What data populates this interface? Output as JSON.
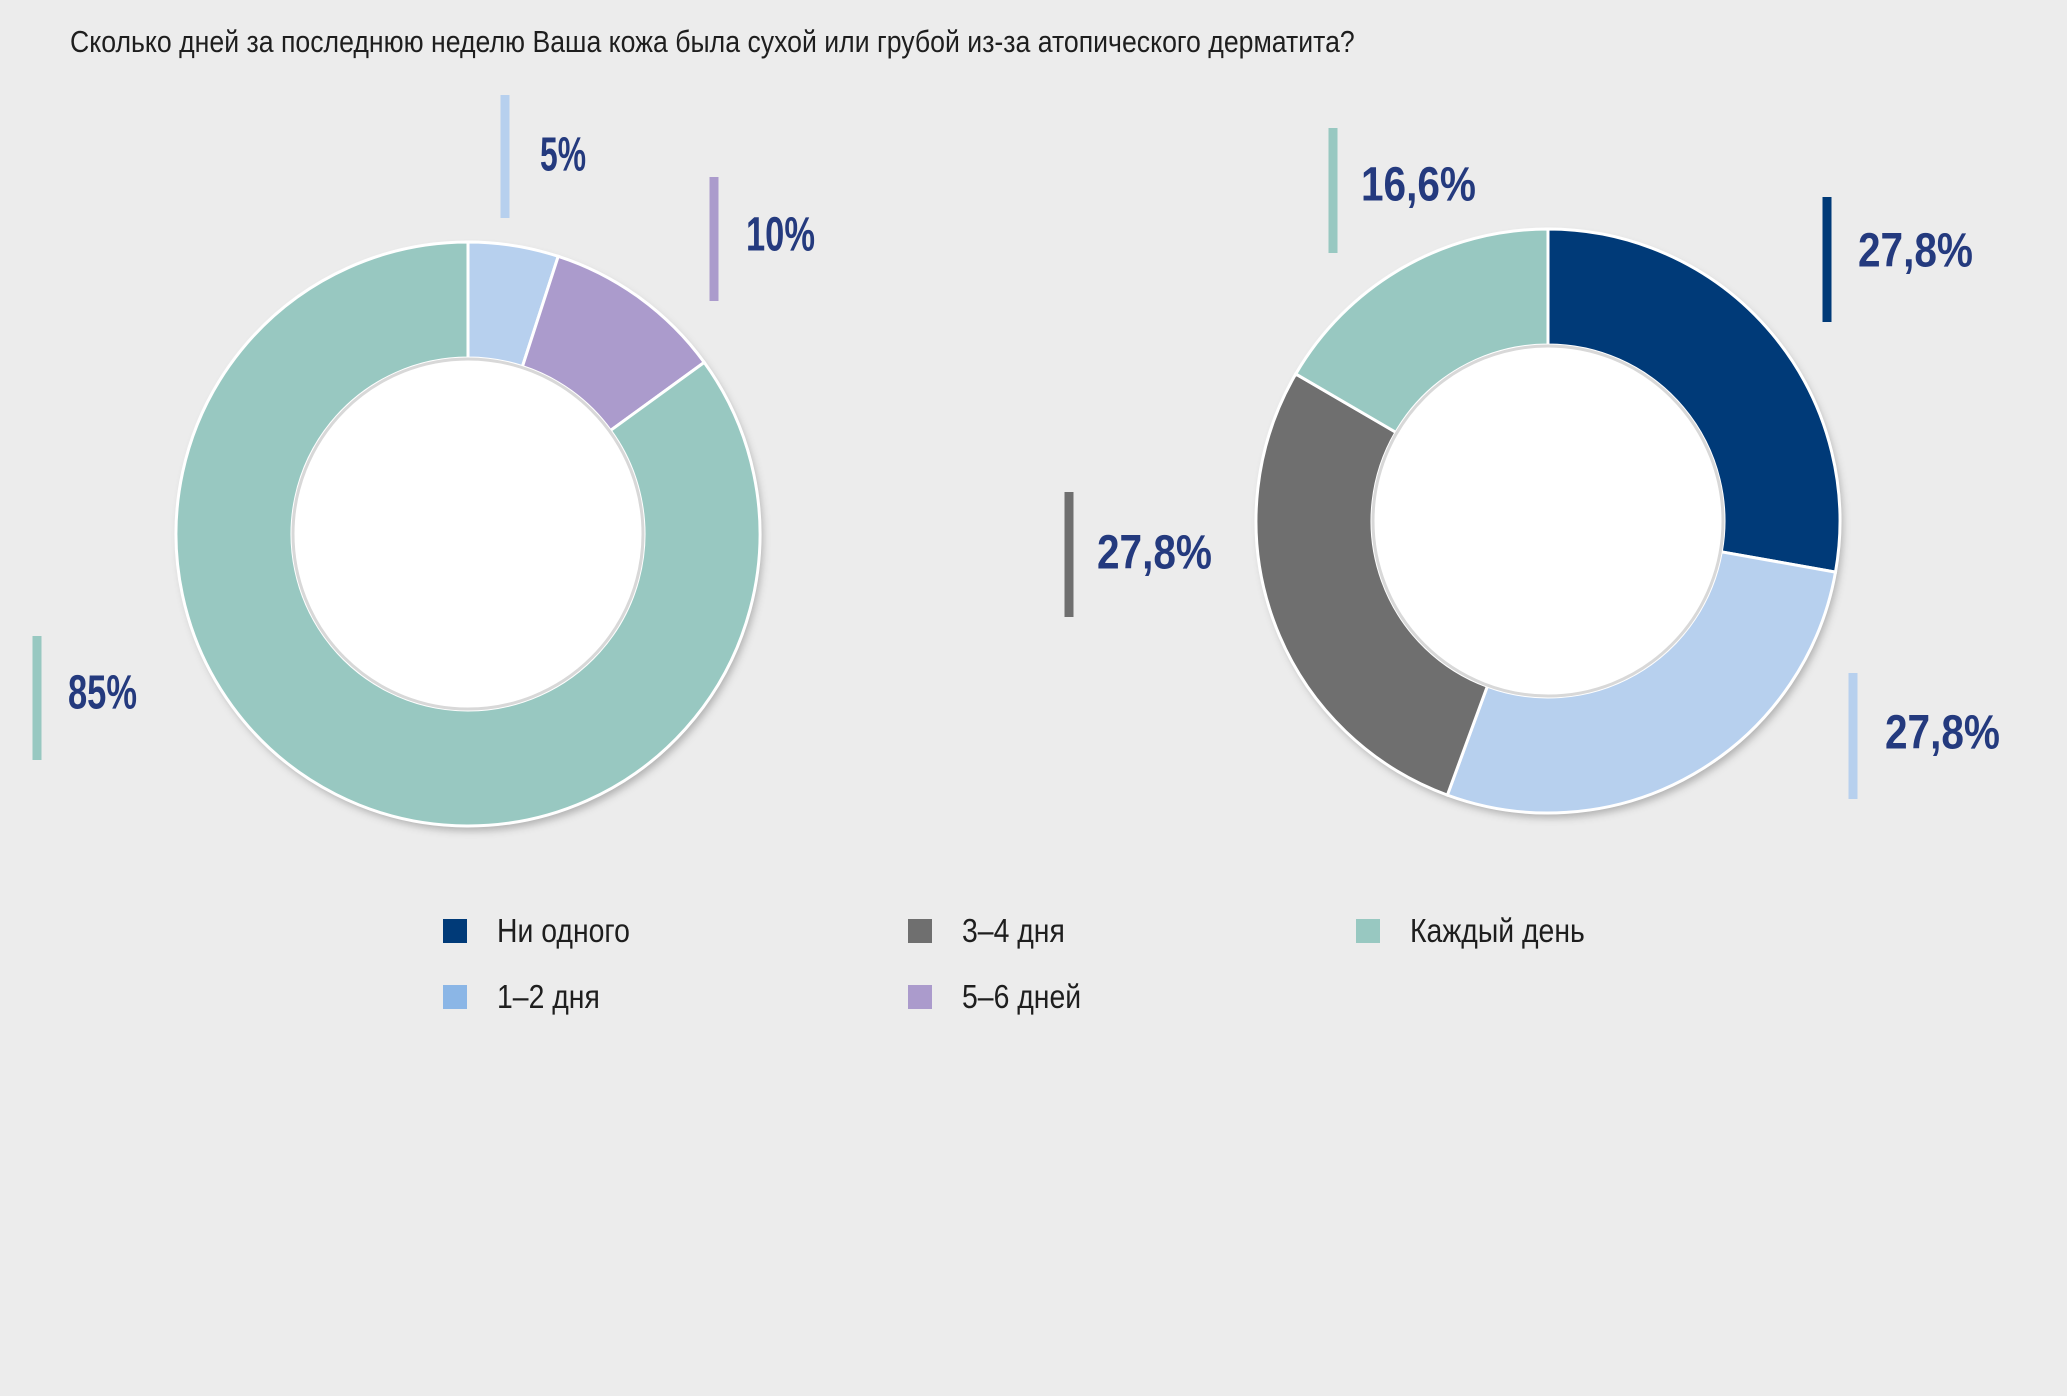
{
  "title": "Сколько дней за последнюю неделю Ваша кожа была сухой или грубой из-за атопического дерматита?",
  "colors": {
    "none": "#003a78",
    "d12": "#b7d0ee",
    "d34": "#6f6f6f",
    "d56": "#ab9bcc",
    "every": "#98c8c1",
    "legend_d12": "#8bb6e6",
    "background": "#ececec",
    "label_text": "#243a7e"
  },
  "legend": {
    "items": [
      {
        "label": "Ни одного",
        "color": "#003a78"
      },
      {
        "label": "3–4 дня",
        "color": "#6f6f6f"
      },
      {
        "label": "Каждый день",
        "color": "#98c8c1"
      },
      {
        "label": "1–2 дня",
        "color": "#8bb6e6"
      },
      {
        "label": "5–6 дней",
        "color": "#ab9bcc"
      }
    ]
  },
  "chart_data": [
    {
      "type": "donut",
      "title": "",
      "series": [
        {
          "name": "1–2 дня",
          "value": 5,
          "label": "5%",
          "color": "#b7d0ee"
        },
        {
          "name": "5–6 дней",
          "value": 10,
          "label": "10%",
          "color": "#ab9bcc"
        },
        {
          "name": "Каждый день",
          "value": 85,
          "label": "85%",
          "color": "#98c8c1"
        }
      ]
    },
    {
      "type": "donut",
      "title": "",
      "series": [
        {
          "name": "Ни одного",
          "value": 27.8,
          "label": "27,8%",
          "color": "#003a78"
        },
        {
          "name": "1–2 дня",
          "value": 27.8,
          "label": "27,8%",
          "color": "#b7d0ee"
        },
        {
          "name": "3–4 дня",
          "value": 27.8,
          "label": "27,8%",
          "color": "#6f6f6f"
        },
        {
          "name": "Каждый день",
          "value": 16.6,
          "label": "16,6%",
          "color": "#98c8c1"
        }
      ]
    }
  ]
}
